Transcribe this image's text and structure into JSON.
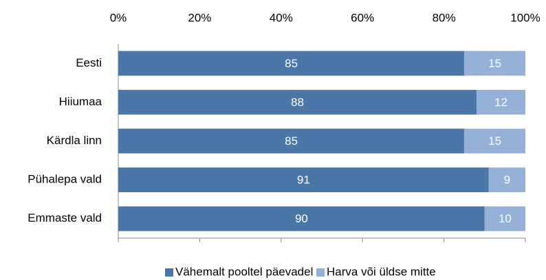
{
  "chart_data": {
    "type": "stacked_barh",
    "categories": [
      "Eesti",
      "Hiiumaa",
      "Kärdla linn",
      "Pühalepa vald",
      "Emmaste vald"
    ],
    "series": [
      {
        "name": "Vähemalt pooltel päevadel",
        "color": "#4a76a8",
        "values": [
          85,
          88,
          85,
          91,
          90
        ]
      },
      {
        "name": "Harva või üldse mitte",
        "color": "#95b1d7",
        "values": [
          15,
          12,
          15,
          9,
          10
        ]
      }
    ],
    "xlim": [
      0,
      100
    ],
    "xticks": [
      {
        "value": 0,
        "label": "0%"
      },
      {
        "value": 20,
        "label": "20%"
      },
      {
        "value": 40,
        "label": "40%"
      },
      {
        "value": 60,
        "label": "60%"
      },
      {
        "value": 80,
        "label": "80%"
      },
      {
        "value": 100,
        "label": "100%"
      }
    ],
    "legend": "bottom"
  }
}
